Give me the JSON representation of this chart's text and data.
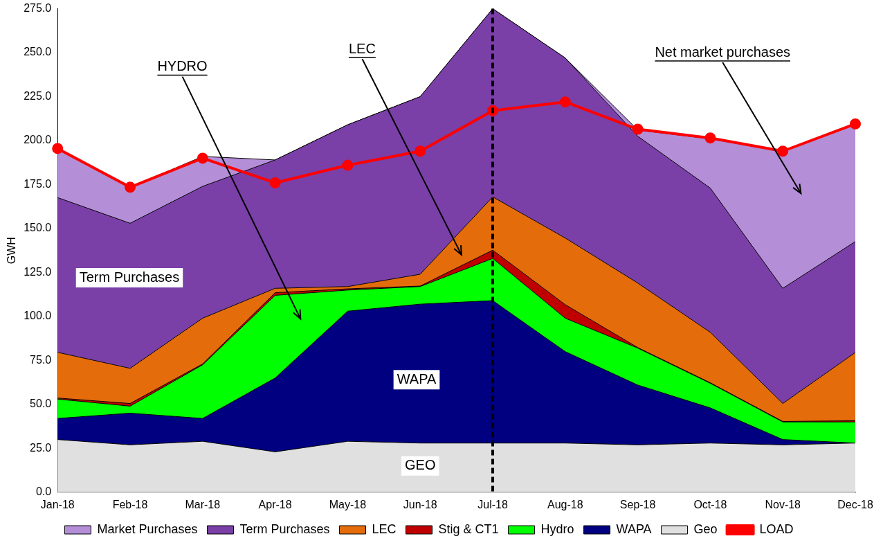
{
  "chart_data": {
    "type": "area",
    "stacked": true,
    "ylabel": "GWH",
    "categories": [
      "Jan-18",
      "Feb-18",
      "Mar-18",
      "Apr-18",
      "May-18",
      "Jun-18",
      "Jul-18",
      "Aug-18",
      "Sep-18",
      "Oct-18",
      "Nov-18",
      "Dec-18"
    ],
    "series": [
      {
        "name": "LOAD",
        "type": "line",
        "color": "#ff0000",
        "marker": "circle",
        "values": [
          195.5,
          173.5,
          190,
          176,
          186,
          194,
          217,
          222,
          206.5,
          201.5,
          194,
          209.5
        ]
      },
      {
        "name": "Geo",
        "color": "#e0e0e0",
        "values": [
          30,
          27,
          29,
          23,
          29,
          28,
          28,
          28,
          27,
          28,
          27,
          28
        ]
      },
      {
        "name": "WAPA",
        "color": "#000080",
        "values": [
          12,
          18,
          13,
          42,
          74,
          79,
          81,
          52,
          34,
          20,
          3,
          0
        ]
      },
      {
        "name": "Hydro",
        "color": "#00ff00",
        "values": [
          11,
          4,
          30.5,
          47,
          12,
          10,
          24,
          19,
          21,
          14,
          10,
          12
        ]
      },
      {
        "name": "Stig & CT1",
        "color": "#c00000",
        "values": [
          0.6,
          1.5,
          0.5,
          1.5,
          0.7,
          0.3,
          4.7,
          7.7,
          0.3,
          0.3,
          0.3,
          0.7
        ]
      },
      {
        "name": "LEC",
        "color": "#e46c0a",
        "values": [
          26,
          20,
          26,
          2.5,
          1.3,
          6.7,
          30.3,
          37.9,
          36.7,
          28.7,
          10.2,
          38.8
        ]
      },
      {
        "name": "Term Purchases",
        "color": "#7b3fa8",
        "values": [
          88,
          82.5,
          75,
          73,
          92,
          101,
          107,
          102.4,
          83.5,
          82,
          65.5,
          63.1
        ]
      },
      {
        "name": "Market Purchases",
        "color": "#b48fd8",
        "values": [
          27.5,
          20.5,
          17,
          0,
          0,
          0,
          0,
          0,
          3.5,
          28,
          78,
          66.5
        ]
      }
    ],
    "ylim": [
      0,
      275
    ],
    "yticks": [
      {
        "value": 0,
        "label": "0.0"
      },
      {
        "value": 25,
        "label": "25.0"
      },
      {
        "value": 50,
        "label": "50.0"
      },
      {
        "value": 75,
        "label": "75.0"
      },
      {
        "value": 100,
        "label": "100.0"
      },
      {
        "value": 125,
        "label": "125.0"
      },
      {
        "value": 150,
        "label": "150.0"
      },
      {
        "value": 175,
        "label": "175.0"
      },
      {
        "value": 200,
        "label": "200.0"
      },
      {
        "value": 225,
        "label": "225.0"
      },
      {
        "value": 250,
        "label": "250.0"
      },
      {
        "value": 275,
        "label": "275.0"
      }
    ],
    "ref_lines": [
      {
        "axis": "x",
        "value": "Jul-18",
        "color": "#000000",
        "line_style": "dashed"
      }
    ],
    "annotations": [
      "Term Purchases",
      "HYDRO",
      "LEC",
      "Net market purchases",
      "WAPA",
      "GEO"
    ],
    "legend": "bottom",
    "grid": false
  }
}
